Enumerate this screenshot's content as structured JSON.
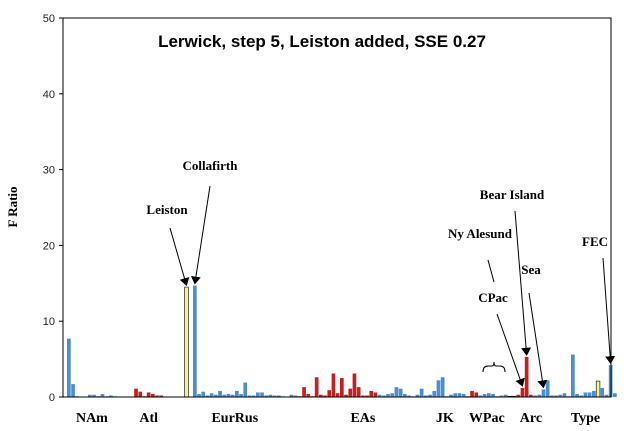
{
  "chart_data": {
    "type": "bar",
    "title": "Lerwick, step 5, Leiston added, SSE 0.27",
    "ylabel": "F Ratio",
    "xlabel": "",
    "ylim": [
      0,
      50
    ],
    "yticks": [
      0,
      10,
      20,
      30,
      40,
      50
    ],
    "grid": false,
    "colors": {
      "blue": "#4a8fd4",
      "red": "#c42020",
      "yellow": "#f4f28a",
      "axis": "#000000"
    },
    "groups": [
      {
        "label": "NAm",
        "start": 0,
        "end": 11
      },
      {
        "label": "Atl",
        "start": 16,
        "end": 22
      },
      {
        "label": "EurRus",
        "start": 29,
        "end": 50
      },
      {
        "label": "EAs",
        "start": 55,
        "end": 85
      },
      {
        "label": "JK",
        "start": 86,
        "end": 93
      },
      {
        "label": "WPac",
        "start": 95,
        "end": 104
      },
      {
        "label": "Arc",
        "start": 106,
        "end": 114
      },
      {
        "label": "Type",
        "start": 116,
        "end": 130
      }
    ],
    "values": [
      7.7,
      1.7,
      0.1,
      0,
      0,
      0.3,
      0.3,
      0.1,
      0.4,
      0.1,
      0.2,
      0.1,
      0,
      0,
      0,
      0,
      1.1,
      0.7,
      0.1,
      0.6,
      0.4,
      0.2,
      0.2,
      0,
      0,
      0,
      0,
      0,
      14.5,
      0,
      14.7,
      0.4,
      0.7,
      0.2,
      0.5,
      0.3,
      0.8,
      0.3,
      0.4,
      0.3,
      0.8,
      0.4,
      1.9,
      0.2,
      0.2,
      0.6,
      0.6,
      0.2,
      0.3,
      0.2,
      0.2,
      0.1,
      0,
      0.3,
      0.2,
      0.1,
      1.3,
      0.4,
      0.1,
      2.6,
      0.3,
      0.2,
      0.9,
      3.1,
      0.5,
      2.5,
      0.3,
      1.1,
      3.1,
      1.3,
      0.2,
      0.2,
      0.8,
      0.6,
      0.3,
      0.2,
      0.4,
      0.5,
      1.3,
      1.1,
      0.4,
      0.2,
      0.1,
      0.3,
      1.1,
      0.2,
      0.3,
      0.8,
      2.2,
      2.6,
      0.1,
      0.3,
      0.5,
      0.5,
      0.4,
      0.1,
      0.8,
      0.6,
      0.2,
      0.4,
      0.5,
      0.4,
      0.1,
      0.2,
      0.3,
      0.1,
      0.1,
      0.3,
      1.2,
      5.3,
      0.3,
      0.2,
      0.3,
      1.0,
      2.2,
      0.2,
      0.2,
      0.3,
      0.5,
      0.1,
      5.6,
      0.4,
      0.2,
      0.6,
      0.6,
      0.8,
      2.1,
      1.2,
      0.3,
      4.2,
      0.5
    ],
    "bar_colors": [
      "blue",
      "blue",
      "blue",
      "blue",
      "blue",
      "blue",
      "blue",
      "blue",
      "blue",
      "blue",
      "blue",
      "blue",
      "blue",
      "blue",
      "blue",
      "blue",
      "red",
      "red",
      "red",
      "red",
      "red",
      "red",
      "red",
      "red",
      "red",
      "red",
      "red",
      "red",
      "yellow",
      "blue",
      "blue",
      "blue",
      "blue",
      "blue",
      "blue",
      "blue",
      "blue",
      "blue",
      "blue",
      "blue",
      "blue",
      "blue",
      "blue",
      "blue",
      "blue",
      "blue",
      "blue",
      "blue",
      "blue",
      "blue",
      "blue",
      "blue",
      "blue",
      "blue",
      "blue",
      "red",
      "red",
      "red",
      "red",
      "red",
      "red",
      "red",
      "red",
      "red",
      "red",
      "red",
      "red",
      "red",
      "red",
      "red",
      "red",
      "red",
      "red",
      "red",
      "blue",
      "blue",
      "blue",
      "blue",
      "blue",
      "blue",
      "blue",
      "blue",
      "blue",
      "blue",
      "blue",
      "blue",
      "blue",
      "blue",
      "blue",
      "blue",
      "blue",
      "blue",
      "blue",
      "blue",
      "blue",
      "red",
      "red",
      "red",
      "blue",
      "blue",
      "blue",
      "blue",
      "blue",
      "blue",
      "blue",
      "yellow",
      "yellow",
      "red",
      "red",
      "red",
      "red",
      "blue",
      "blue",
      "blue",
      "blue",
      "blue",
      "blue",
      "blue",
      "blue",
      "blue",
      "blue",
      "blue",
      "blue",
      "blue",
      "blue",
      "blue",
      "yellow",
      "blue"
    ],
    "annotations": [
      {
        "text": "Leiston",
        "bar": 28
      },
      {
        "text": "Collafirth",
        "bar": 30
      },
      {
        "text": "Bear Island",
        "bar": 109
      },
      {
        "text": "Ny Alesund",
        "bar": 107
      },
      {
        "text": "CPac",
        "bar": 108
      },
      {
        "text": "Sea",
        "bar": 113
      },
      {
        "text": "FEC",
        "bar": 129
      }
    ]
  }
}
